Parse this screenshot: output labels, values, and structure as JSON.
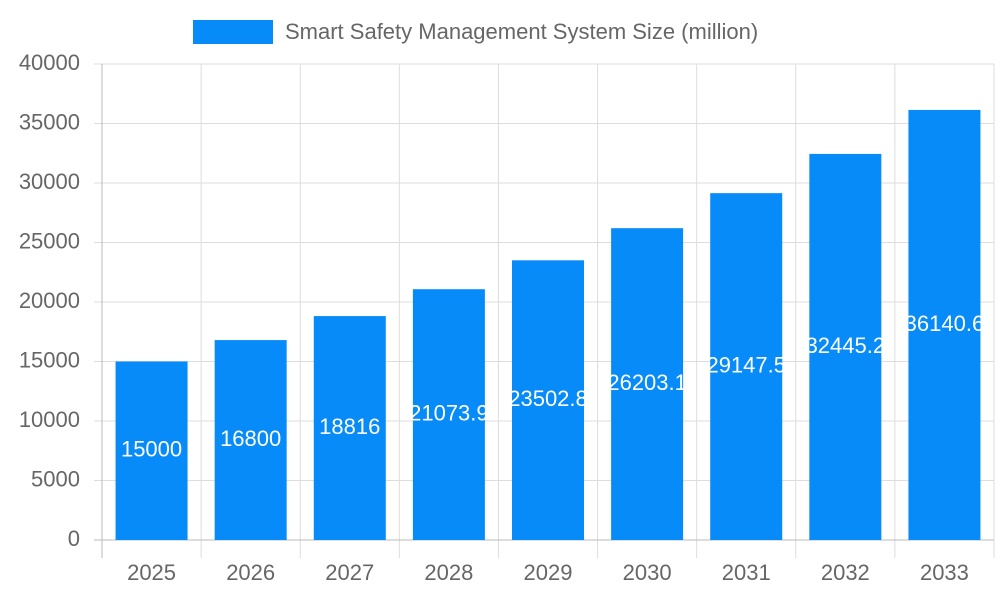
{
  "chart_data": {
    "type": "bar",
    "series": [
      {
        "name": "Smart Safety Management System Size (million)",
        "color": "#068bf8",
        "values": [
          15000,
          16800,
          18816,
          21073.9,
          23502.8,
          26203.1,
          29147.5,
          32445.2,
          36140.6
        ]
      }
    ],
    "categories": [
      "2025",
      "2026",
      "2027",
      "2028",
      "2029",
      "2030",
      "2031",
      "2032",
      "2033"
    ],
    "ylim": [
      0,
      40000
    ],
    "yticks": [
      0,
      5000,
      10000,
      15000,
      20000,
      25000,
      30000,
      35000,
      40000
    ],
    "grid": true,
    "legend": "top"
  }
}
